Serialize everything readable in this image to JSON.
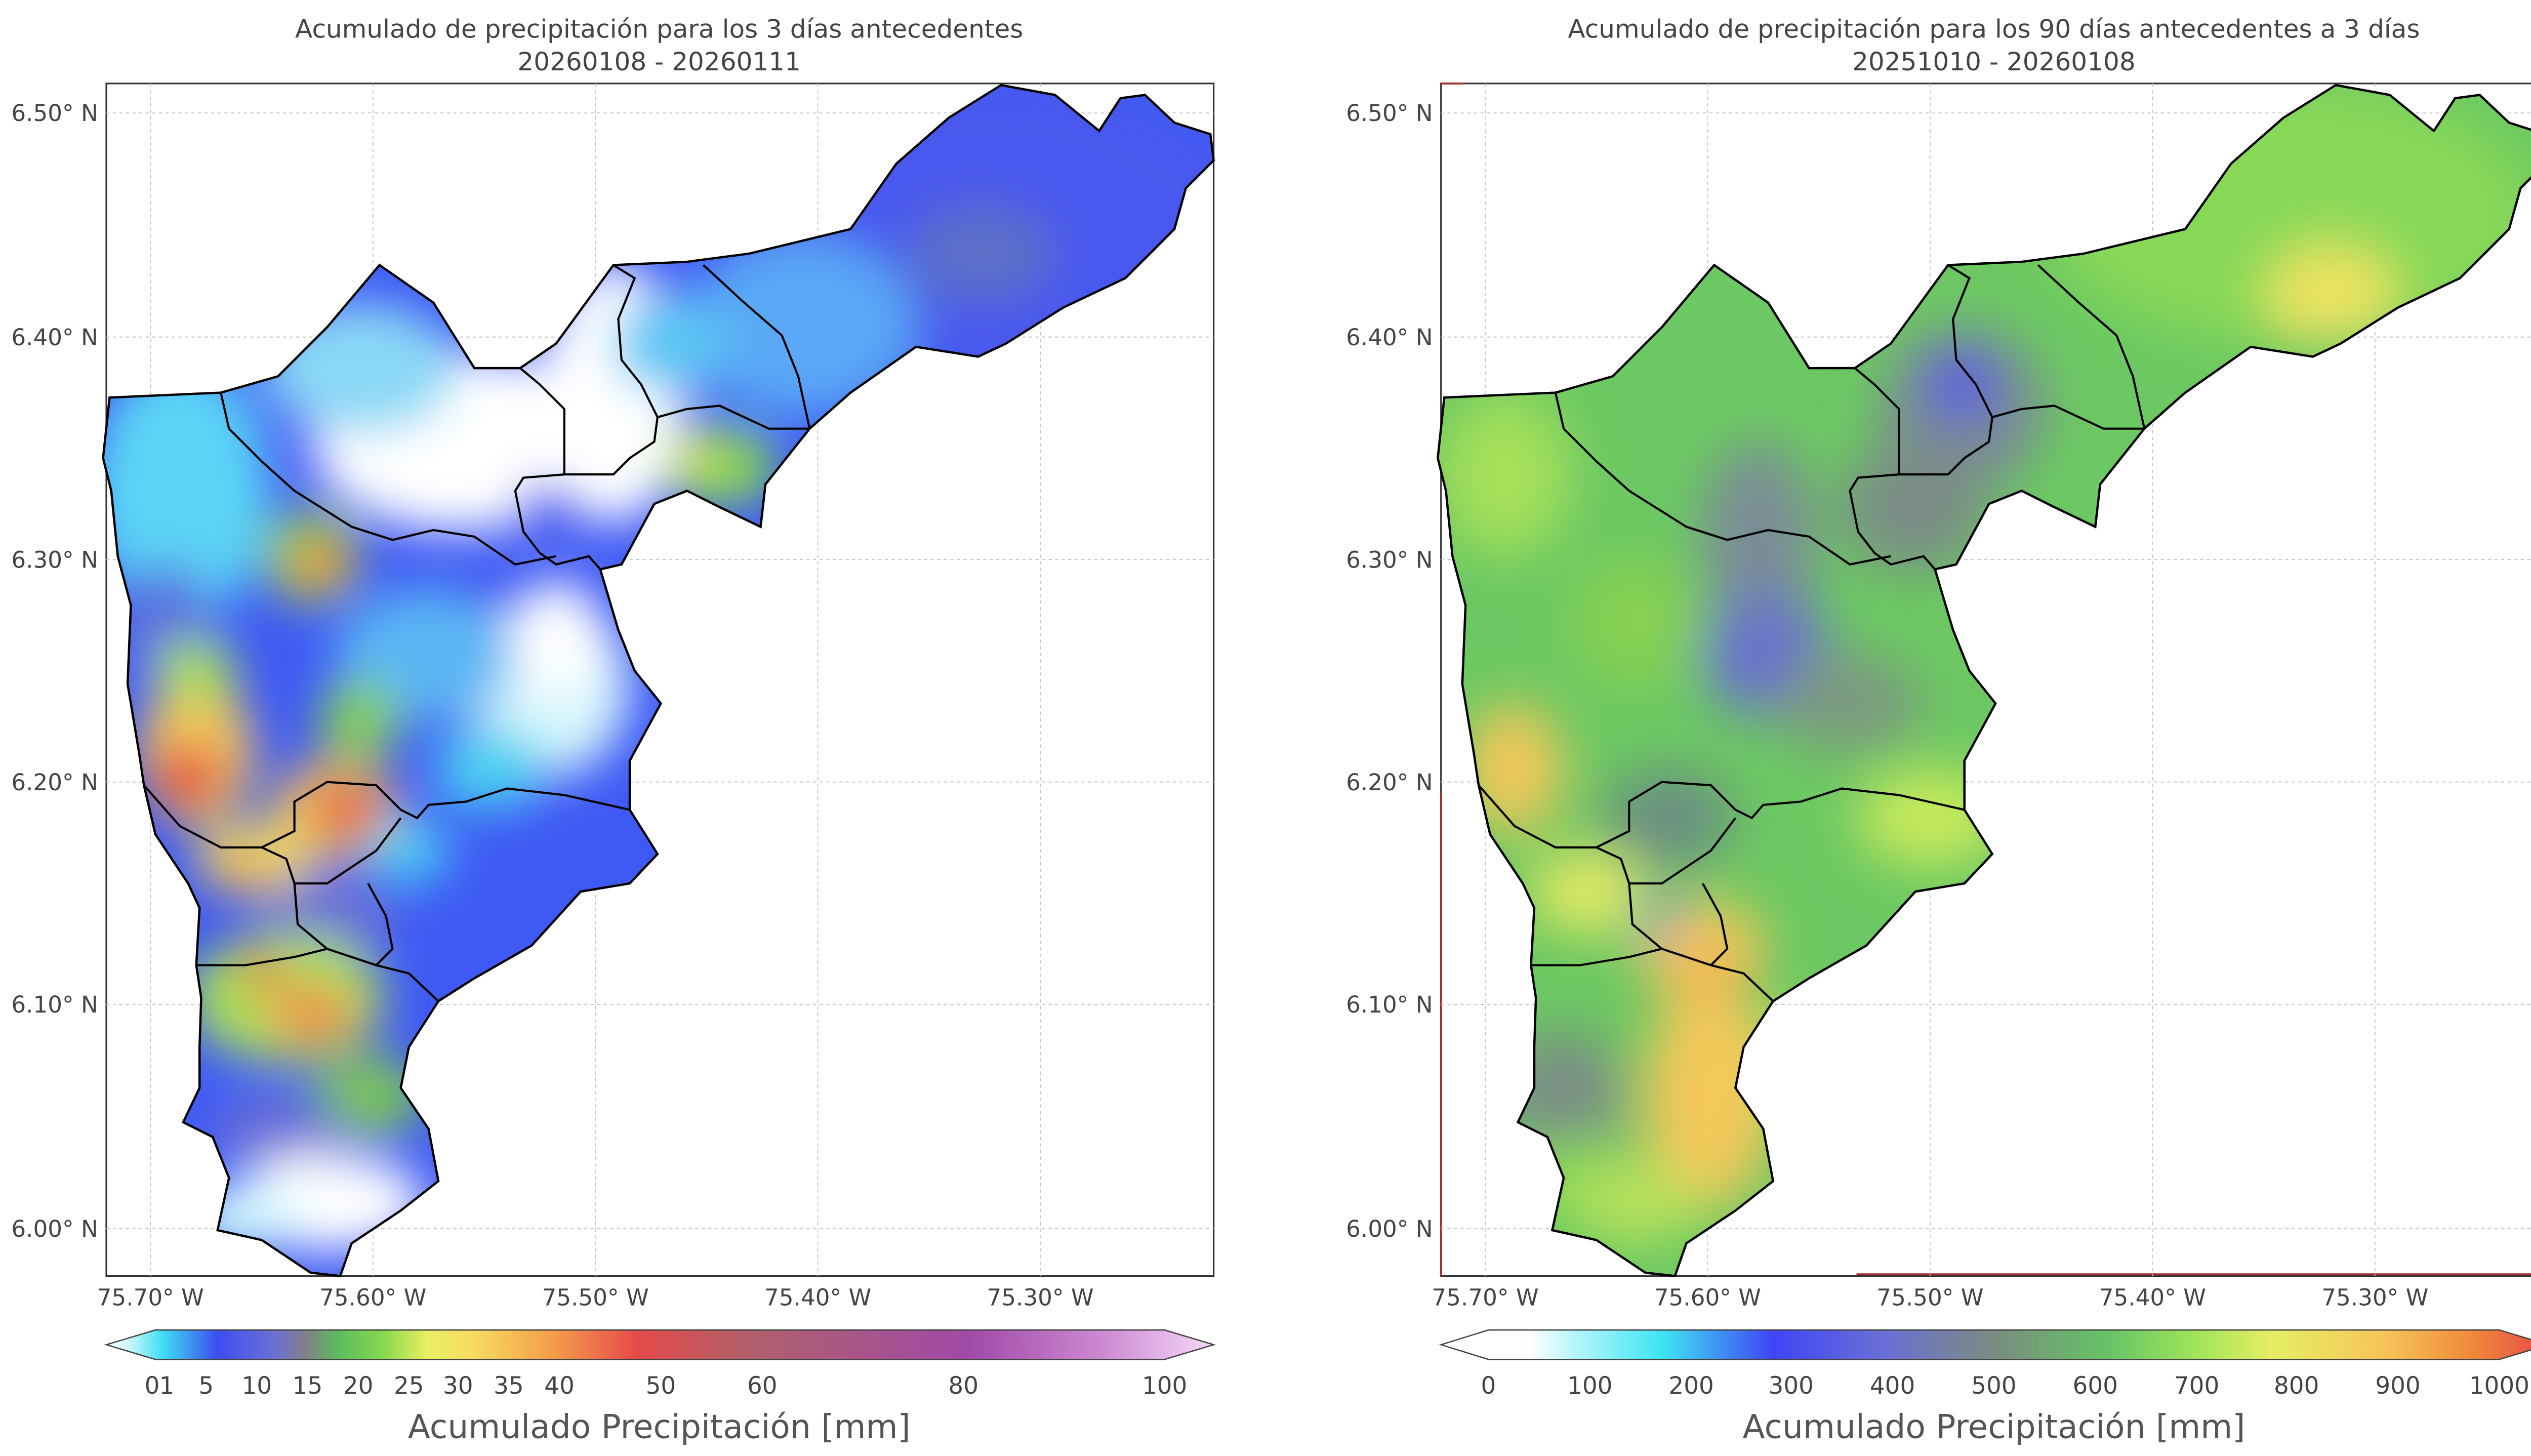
{
  "left_map": {
    "title_line1": "Acumulado de precipitación para los 3 días antecedentes",
    "title_line2": "20260108 - 20260111",
    "lat_ticks": [
      "6.50° N",
      "6.40° N",
      "6.30° N",
      "6.20° N",
      "6.10° N",
      "6.00° N"
    ],
    "lon_ticks": [
      "75.70° W",
      "75.60° W",
      "75.50° W",
      "75.40° W",
      "75.30° W"
    ],
    "colorbar_ticks": [
      "0",
      "1",
      "5",
      "10",
      "15",
      "20",
      "25",
      "30",
      "35",
      "40",
      "50",
      "60",
      "80",
      "100"
    ],
    "colorbar_label": "Acumulado Precipitación [mm]"
  },
  "right_map": {
    "title_line1": "Acumulado de precipitación para los 90 días antecedentes a 3 días",
    "title_line2": "20251010 - 20260108",
    "lat_ticks": [
      "6.50° N",
      "6.40° N",
      "6.30° N",
      "6.20° N",
      "6.10° N",
      "6.00° N"
    ],
    "lon_ticks": [
      "75.70° W",
      "75.60° W",
      "75.50° W",
      "75.40° W",
      "75.30° W"
    ],
    "colorbar_ticks": [
      "0",
      "100",
      "200",
      "300",
      "400",
      "500",
      "600",
      "700",
      "800",
      "900",
      "1000"
    ],
    "colorbar_label": "Acumulado Precipitación [mm]"
  },
  "colors": {
    "frame": "#333333",
    "grid": "#bdbdbd",
    "boundary": "#000000",
    "left_scale": [
      "#ffffff",
      "#50e6f5",
      "#3b4ef0",
      "#6a6fd6",
      "#7d7d8c",
      "#6cc26c",
      "#7cd24f",
      "#c6ea5a",
      "#f4ee6a",
      "#f4c95a",
      "#f08a3a",
      "#e04a4a",
      "#b06a6a",
      "#a04aa0",
      "#c080c8",
      "#f0d0f5"
    ],
    "right_scale": [
      "#ffffff",
      "#ffffff",
      "#9cf3fa",
      "#3de4f2",
      "#3f45f5",
      "#6a6fd6",
      "#7a8c80",
      "#6cc26c",
      "#86dd56",
      "#d6ee5f",
      "#f6e66a",
      "#f6c55a",
      "#f08a3a",
      "#e64a4a"
    ]
  }
}
